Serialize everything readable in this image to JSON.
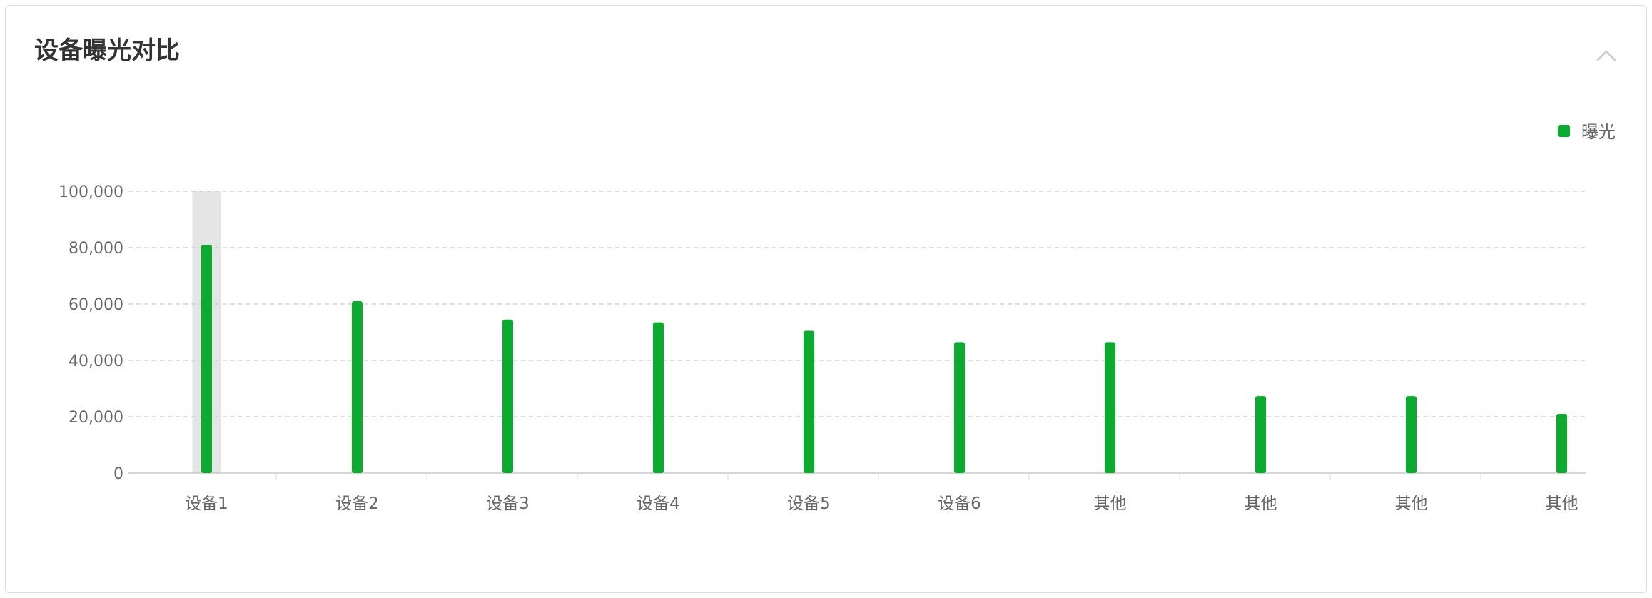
{
  "card": {
    "title": "设备曝光对比",
    "collapse_icon": "chevron-up-icon"
  },
  "colors": {
    "bar": "#0aab2e",
    "highlight": "#e5e5e5",
    "grid": "#cccccc",
    "axis": "#c8c8c8",
    "label": "#666666",
    "title": "#333333"
  },
  "chart_data": {
    "type": "bar",
    "categories": [
      "设备1",
      "设备2",
      "设备3",
      "设备4",
      "设备5",
      "设备6",
      "其他",
      "其他",
      "其他",
      "其他"
    ],
    "series": [
      {
        "name": "曝光",
        "values": [
          81000,
          61000,
          54500,
          53500,
          50500,
          46500,
          46500,
          27300,
          27300,
          21000
        ]
      }
    ],
    "ylim": [
      0,
      100000
    ],
    "yticks": [
      "0",
      "20,000",
      "40,000",
      "60,000",
      "80,000",
      "100,000"
    ],
    "title": "",
    "xlabel": "",
    "ylabel": "",
    "grid": true,
    "legend_position": "top-right",
    "highlighted_category_index": 0
  }
}
